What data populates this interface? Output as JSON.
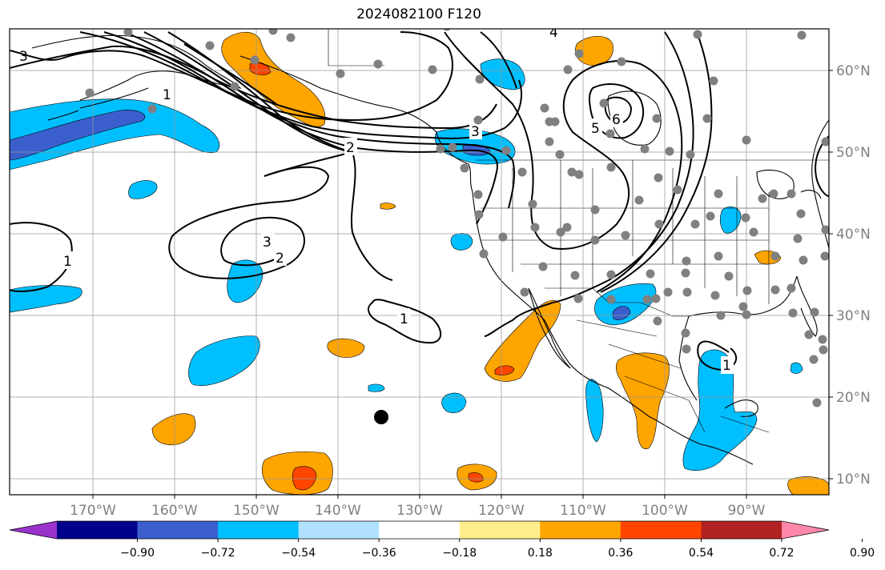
{
  "title": "2024082100 F120",
  "map": {
    "projection": "PlateCarree",
    "lon_range": [
      -180,
      -80
    ],
    "lat_range": [
      8,
      65
    ],
    "lon_ticks": [
      "170°W",
      "160°W",
      "150°W",
      "140°W",
      "130°W",
      "120°W",
      "110°W",
      "100°W",
      "90°W"
    ],
    "lat_ticks": [
      "60°N",
      "50°N",
      "40°N",
      "30°N",
      "20°N",
      "10°N"
    ],
    "gridlines": true,
    "contour_labels": [
      "1",
      "1",
      "1",
      "1",
      "2",
      "2",
      "3",
      "3",
      "3",
      "4",
      "5",
      "6"
    ],
    "storm_marker_label": "",
    "station_marker_color": "#808080"
  },
  "colorbar": {
    "tick_labels": [
      "−0.90",
      "−0.72",
      "−0.54",
      "−0.36",
      "−0.18",
      "0.18",
      "0.36",
      "0.54",
      "0.72",
      "0.90"
    ],
    "colors": [
      "#9933cc",
      "#00008b",
      "#3a5fcd",
      "#00bfff",
      "#b0e2ff",
      "#ffffff",
      "#ffee8c",
      "#ffa500",
      "#ff4500",
      "#b22222",
      "#ff88aa"
    ],
    "extend": "both"
  }
}
